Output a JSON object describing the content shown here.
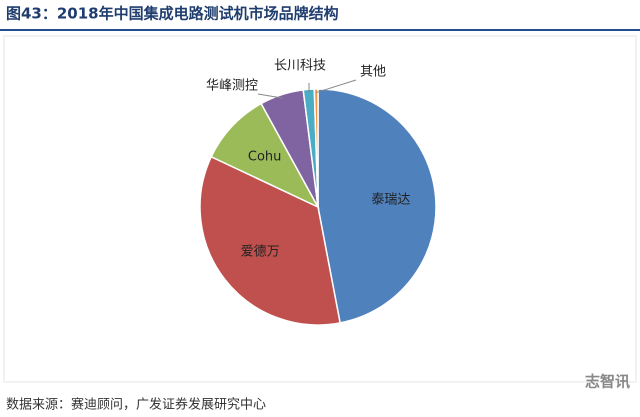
{
  "chart_data": {
    "type": "pie",
    "title": "图43：2018年中国集成电路测试机市场品牌结构",
    "categories": [
      "泰瑞达",
      "爱德万",
      "Cohu",
      "华峰测控",
      "长川科技",
      "其他"
    ],
    "values": [
      47,
      35,
      10,
      6,
      1.5,
      0.5
    ],
    "colors": [
      "#4f81bd",
      "#c0504d",
      "#9bbb59",
      "#8064a2",
      "#4bacc6",
      "#f79646"
    ],
    "source": "数据来源：赛迪顾问，广发证券发展研究中心"
  },
  "watermark": "志智讯"
}
